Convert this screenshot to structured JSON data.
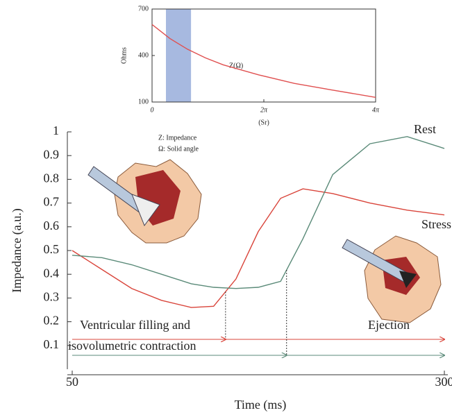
{
  "chart_data": [
    {
      "type": "line",
      "y_label": "Ohms",
      "x_label": "(Sr)",
      "annotations": [
        "Z(Ω)"
      ],
      "x": [
        0,
        1,
        2,
        3,
        4,
        6,
        8,
        10,
        12.566
      ],
      "values": [
        600,
        510,
        440,
        385,
        340,
        275,
        220,
        180,
        130
      ],
      "color": "#e05050",
      "band": [
        0.78,
        2.19
      ],
      "band_color": "#a7b9e0",
      "xlim": [
        0,
        12.566
      ],
      "xticks": [
        0,
        {
          "value": 6.283,
          "label": "2π"
        },
        {
          "value": 12.566,
          "label": "4π"
        }
      ],
      "ylim": [
        100,
        700
      ],
      "yticks": [
        100,
        400,
        700
      ]
    },
    {
      "type": "line",
      "y_label": "Impedance (a.u.)",
      "x_label": "Time (ms)",
      "annotations": [
        "Z: Impedance",
        "Ω: Solid angle",
        "Ventricular filling and",
        "isovolumetric contraction",
        "Ejection"
      ],
      "x": [
        50,
        70,
        90,
        110,
        130,
        145,
        160,
        175,
        190,
        205,
        225,
        250,
        275,
        300
      ],
      "series": [
        {
          "name": "Stress",
          "color": "#d9443a",
          "values": [
            0.5,
            0.42,
            0.34,
            0.29,
            0.26,
            0.265,
            0.38,
            0.58,
            0.72,
            0.76,
            0.74,
            0.7,
            0.67,
            0.65
          ]
        },
        {
          "name": "Rest",
          "color": "#5a8a78",
          "values": [
            0.48,
            0.47,
            0.44,
            0.4,
            0.36,
            0.345,
            0.34,
            0.345,
            0.37,
            0.55,
            0.82,
            0.95,
            0.98,
            0.93
          ]
        }
      ],
      "vlines": [
        153,
        194
      ],
      "xlim": [
        50,
        300
      ],
      "xticks": [
        50,
        300
      ],
      "ylim": [
        0,
        1
      ],
      "yticks": [
        0.1,
        0.2,
        0.3,
        0.4,
        0.5,
        0.6,
        0.7,
        0.8,
        0.9,
        1
      ]
    }
  ]
}
